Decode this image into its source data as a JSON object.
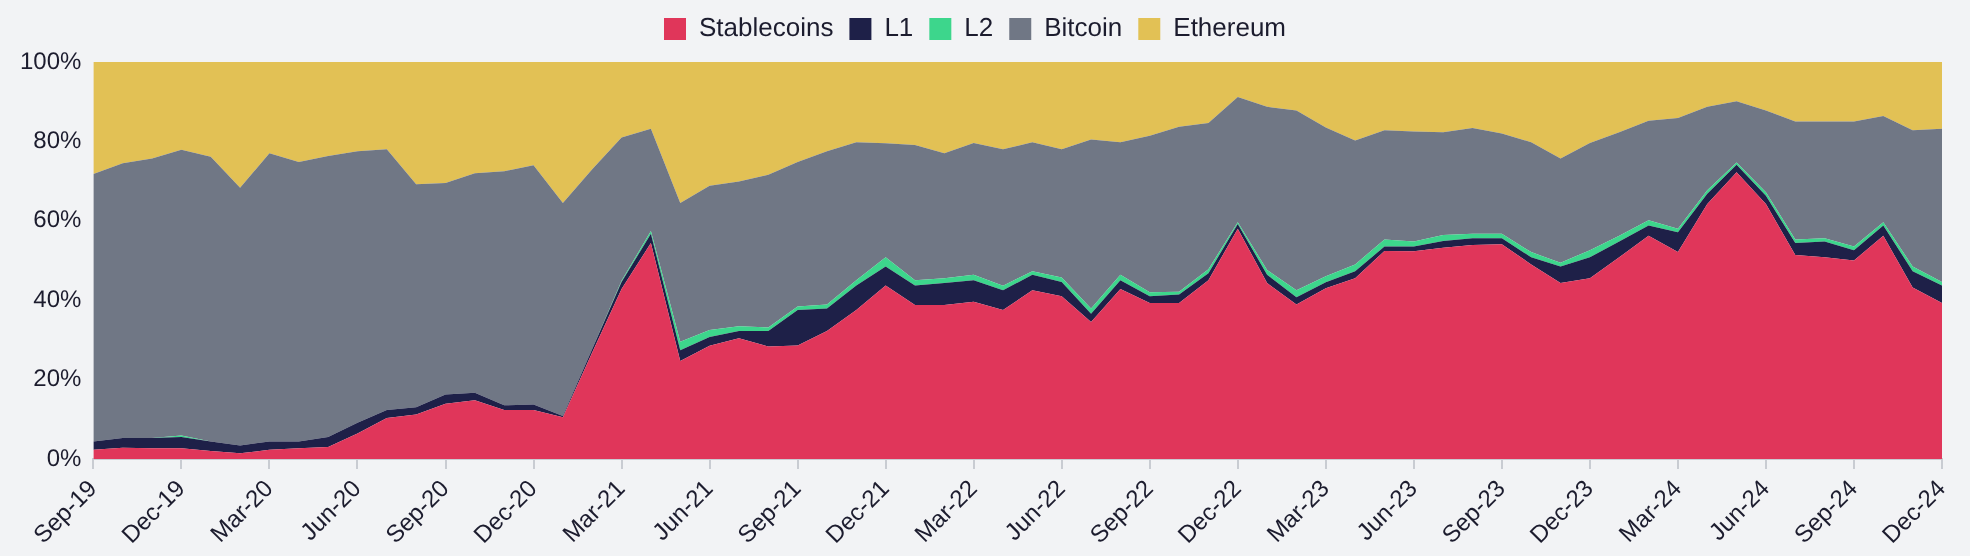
{
  "chart_data": {
    "type": "area",
    "stacked": true,
    "legend": "top",
    "grid": false,
    "categories": [
      "Sep-19",
      null,
      null,
      "Dec-19",
      null,
      null,
      "Mar-20",
      null,
      null,
      "Jun-20",
      null,
      null,
      "Sep-20",
      null,
      null,
      "Dec-20",
      null,
      null,
      "Mar-21",
      null,
      null,
      "Jun-21",
      null,
      null,
      "Sep-21",
      null,
      null,
      "Dec-21",
      null,
      null,
      "Mar-22",
      null,
      null,
      "Jun-22",
      null,
      null,
      "Sep-22",
      null,
      null,
      "Dec-22",
      null,
      null,
      "Mar-23",
      null,
      null,
      "Jun-23",
      null,
      null,
      "Sep-23",
      null,
      null,
      "Dec-23",
      null,
      null,
      "Mar-24",
      null,
      null,
      "Jun-24",
      null,
      null,
      "Sep-24",
      null,
      null,
      "Dec-24"
    ],
    "ylim": [
      0,
      100
    ],
    "yticks": [
      {
        "value": 0,
        "label": "0%"
      },
      {
        "value": 20,
        "label": "20%"
      },
      {
        "value": 40,
        "label": "40%"
      },
      {
        "value": 60,
        "label": "60%"
      },
      {
        "value": 80,
        "label": "80%"
      },
      {
        "value": 100,
        "label": "100%"
      }
    ],
    "series": [
      {
        "name": "Stablecoins",
        "color": "#e0365a",
        "values": [
          2.3,
          2.8,
          2.7,
          2.7,
          2.0,
          1.4,
          2.3,
          2.7,
          3.0,
          6.4,
          10.3,
          11.2,
          13.9,
          14.8,
          12.3,
          12.3,
          10.5,
          26.8,
          42.8,
          54.4,
          24.7,
          28.5,
          30.4,
          28.3,
          28.6,
          32.2,
          37.5,
          43.7,
          38.8,
          38.8,
          39.6,
          37.5,
          42.5,
          41,
          34.5,
          42.8,
          39.3,
          39.3,
          45,
          58,
          44.3,
          38.9,
          43,
          45.5,
          52.4,
          52.3,
          53.2,
          53.9,
          54.1,
          49,
          44.3,
          45.5,
          50.8,
          56.2,
          52.1,
          64.2,
          72.2,
          64.2,
          51.4,
          50.8,
          50,
          56.2,
          43.2,
          39.3
        ]
      },
      {
        "name": "L1",
        "color": "#1e2048",
        "values": [
          2.1,
          2.5,
          2.6,
          2.8,
          2.4,
          2.0,
          2.1,
          1.7,
          2.5,
          2.7,
          2.0,
          1.8,
          2.3,
          1.9,
          1.2,
          1.4,
          0.3,
          0.9,
          1.8,
          2.3,
          2.7,
          2.2,
          1.8,
          3.9,
          8.9,
          5.7,
          6.2,
          4.8,
          4.9,
          5.5,
          5.4,
          5.0,
          3.9,
          3.6,
          2.1,
          2.2,
          1.7,
          2.1,
          1.8,
          1.2,
          2.1,
          1.8,
          1.5,
          1.8,
          1.1,
          1.2,
          1.7,
          1.7,
          1.5,
          1.8,
          4.2,
          5.3,
          4.0,
          2.6,
          5.0,
          2.6,
          1.9,
          2.1,
          3.0,
          4.0,
          2.6,
          2.6,
          4.1,
          4.4
        ]
      },
      {
        "name": "L2",
        "color": "#3dd68c",
        "values": [
          0,
          0,
          0,
          0.4,
          0,
          0,
          0,
          0,
          0,
          0,
          0,
          0,
          0,
          0,
          0,
          0,
          0,
          0,
          0.3,
          0.7,
          2.1,
          1.8,
          1.2,
          0.9,
          0.9,
          1.0,
          1.3,
          2.3,
          1.3,
          1.2,
          1.4,
          1.1,
          0.9,
          1.1,
          1.3,
          1.4,
          1.0,
          0.7,
          1.0,
          0.4,
          1.2,
          1.8,
          1.5,
          1.7,
          1.8,
          1.3,
          1.5,
          1.1,
          1.1,
          1.3,
          0.9,
          1.8,
          1.4,
          1.3,
          0.9,
          0.9,
          0.6,
          0.9,
          0.9,
          0.8,
          0.9,
          0.8,
          1.2,
          0.9
        ]
      },
      {
        "name": "Bitcoin",
        "color": "#707785",
        "values": [
          67.4,
          69.2,
          70.4,
          72.0,
          71.7,
          64.9,
          72.6,
          70.4,
          70.8,
          68.4,
          65.7,
          56.2,
          53.3,
          55.3,
          59,
          60.3,
          53.7,
          45.3,
          36.1,
          25.8,
          35,
          36.3,
          36.5,
          38.5,
          36.4,
          38.6,
          34.8,
          28.7,
          34.1,
          31.5,
          33.2,
          34.4,
          32.5,
          32.3,
          42.6,
          33.4,
          39.4,
          41.6,
          36.8,
          31.6,
          41.1,
          45.3,
          37.5,
          31.2,
          27.5,
          27.7,
          25.9,
          26.7,
          25.3,
          27.7,
          26.3,
          27,
          26.1,
          25.1,
          27.9,
          21,
          15.4,
          20.6,
          29.7,
          29.4,
          31.5,
          26.8,
          34.3,
          38.6
        ]
      },
      {
        "name": "Ethereum",
        "color": "#e2c155",
        "values": [
          28.2,
          25.5,
          24.3,
          22.1,
          23.9,
          31.7,
          23,
          25.2,
          23.7,
          22.5,
          22,
          30.8,
          30.5,
          28,
          27.5,
          26,
          35.5,
          27,
          19,
          16.8,
          35.5,
          31.2,
          30.1,
          28.4,
          25.2,
          22.5,
          20.2,
          20.5,
          20.9,
          23,
          20.4,
          22,
          20.2,
          22,
          19.5,
          20.2,
          18.6,
          16.3,
          15.4,
          8.8,
          11.3,
          12.2,
          16.5,
          19.8,
          17.2,
          17.5,
          17.7,
          16.6,
          18,
          20.2,
          24.3,
          20.4,
          17.7,
          14.8,
          14.1,
          11.3,
          9.9,
          12.2,
          15,
          15,
          15,
          13.6,
          17.2,
          16.8
        ]
      }
    ]
  }
}
